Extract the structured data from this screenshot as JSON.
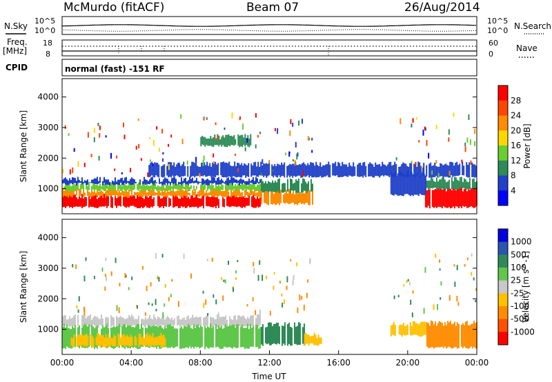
{
  "header": {
    "station": "McMurdo (fitACF)",
    "beam": "Beam 07",
    "date": "26/Aug/2014"
  },
  "side_labels": {
    "nsky": "N.Sky",
    "freq_line1": "Freq.",
    "freq_line2": "[MHz]",
    "cpid": "CPID",
    "nsearch": "N.Search",
    "nave": "Nave"
  },
  "top_panels": {
    "nsky_ticks": [
      "10^5",
      "10^0"
    ],
    "nsearch_ticks": [
      "10^5",
      "10^0"
    ],
    "freq_ticks": [
      "18",
      "8"
    ],
    "nave_ticks": [
      "60",
      "0"
    ],
    "cpid_text": "normal (fast) -151 RF"
  },
  "colors": {
    "power_scale": [
      "#0000ff",
      "#1f40c8",
      "#2e8b57",
      "#6acd32",
      "#ffd700",
      "#ff8c00",
      "#ff4500",
      "#ff0000"
    ],
    "velocity_scale": [
      "#0000e0",
      "#2a55b0",
      "#2e8b57",
      "#5fc84a",
      "#c8c8c8",
      "#ffc000",
      "#ff8c00",
      "#ff5000",
      "#ff0000"
    ]
  },
  "chart_data": [
    {
      "type": "heatmap",
      "quantity": "Power",
      "xlabel": "",
      "ylabel": "Slant Range [km]",
      "ylim": [
        180,
        4600
      ],
      "yticks": [
        "4000",
        "3000",
        "2000",
        "1000"
      ],
      "colorbar_label": "Power [dB]",
      "colorbar_ticks": [
        "28",
        "24",
        "20",
        "16",
        "12",
        "8",
        "4"
      ],
      "colorbar_range": [
        0,
        32
      ],
      "regions": [
        {
          "t": [
            0,
            11.5
          ],
          "range": [
            400,
            750
          ],
          "value": 29
        },
        {
          "t": [
            0,
            11.5
          ],
          "range": [
            750,
            950
          ],
          "value": 20
        },
        {
          "t": [
            0,
            11.5
          ],
          "range": [
            950,
            1150
          ],
          "value": 12
        },
        {
          "t": [
            0,
            11.5
          ],
          "range": [
            1150,
            1300
          ],
          "value": 6
        },
        {
          "t": [
            11.5,
            14.5
          ],
          "range": [
            500,
            900
          ],
          "value": 20
        },
        {
          "t": [
            11.5,
            14.5
          ],
          "range": [
            900,
            1250
          ],
          "value": 8
        },
        {
          "t": [
            21,
            24
          ],
          "range": [
            400,
            1000
          ],
          "value": 29
        },
        {
          "t": [
            21,
            24
          ],
          "range": [
            1000,
            1300
          ],
          "value": 10
        },
        {
          "t": [
            19,
            21
          ],
          "range": [
            800,
            1500
          ],
          "value": 6
        },
        {
          "t": [
            5,
            24
          ],
          "range": [
            1400,
            1800
          ],
          "value": 5
        },
        {
          "t": [
            8,
            11
          ],
          "range": [
            2400,
            2700
          ],
          "value": 10
        }
      ]
    },
    {
      "type": "heatmap",
      "quantity": "Velocity",
      "xlabel": "Time UT",
      "ylabel": "Slant Range [km]",
      "ylim": [
        180,
        4600
      ],
      "yticks": [
        "4000",
        "3000",
        "2000",
        "1000"
      ],
      "xticks": [
        "00:00",
        "04:00",
        "08:00",
        "12:00",
        "16:00",
        "20:00",
        "00:00"
      ],
      "colorbar_label": "Velocity [m s^-1]",
      "colorbar_ticks": [
        "1000",
        "500",
        "100",
        "25",
        "-25",
        "-100",
        "-500",
        "-1000"
      ],
      "regions": [
        {
          "t": [
            0,
            11.5
          ],
          "range": [
            1100,
            1400
          ],
          "value": 0
        },
        {
          "t": [
            0,
            11.5
          ],
          "range": [
            400,
            1100
          ],
          "value": 80
        },
        {
          "t": [
            0.5,
            6
          ],
          "range": [
            450,
            800
          ],
          "value": -100
        },
        {
          "t": [
            11.5,
            14
          ],
          "range": [
            500,
            1150
          ],
          "value": 300
        },
        {
          "t": [
            14,
            15
          ],
          "range": [
            500,
            800
          ],
          "value": -80
        },
        {
          "t": [
            21,
            24
          ],
          "range": [
            400,
            1200
          ],
          "value": -120
        },
        {
          "t": [
            19,
            21
          ],
          "range": [
            800,
            1200
          ],
          "value": -80
        }
      ]
    }
  ]
}
